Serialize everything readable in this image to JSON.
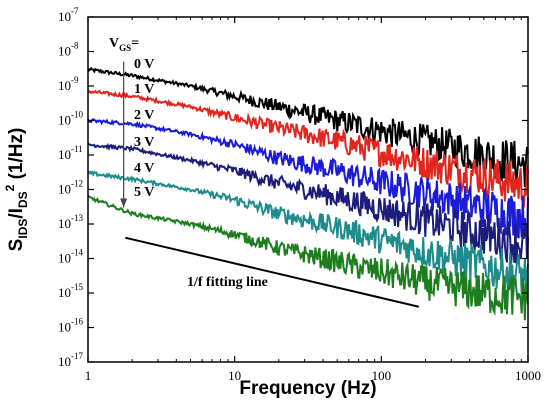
{
  "chart_data": {
    "type": "line",
    "xlabel": "Frequency (Hz)",
    "ylabel": "S_IDS / I_DS^2 (1/Hz)",
    "xscale": "log",
    "yscale": "log",
    "xlim": [
      1,
      1000
    ],
    "ylim": [
      1e-17,
      1e-07
    ],
    "x_ticks": [
      "1",
      "10",
      "100",
      "1000"
    ],
    "y_ticks": [
      "10^-17",
      "10^-16",
      "10^-15",
      "10^-14",
      "10^-13",
      "10^-12",
      "10^-11",
      "10^-10",
      "10^-9",
      "10^-8",
      "10^-7"
    ],
    "legend_title": "V_GS =",
    "series": [
      {
        "name": "0 V",
        "color": "#000000",
        "x": [
          1,
          2,
          5,
          10,
          20,
          50,
          100,
          200,
          500,
          1000
        ],
        "y": [
          3e-09,
          2e-09,
          1e-09,
          5e-10,
          2.5e-10,
          1e-10,
          5e-11,
          2.5e-11,
          1e-11,
          5e-12
        ]
      },
      {
        "name": "1 V",
        "color": "#e0261e",
        "x": [
          1,
          2,
          5,
          10,
          20,
          50,
          100,
          200,
          500,
          1000
        ],
        "y": [
          7e-10,
          5e-10,
          2.5e-10,
          1.2e-10,
          6e-11,
          2.5e-11,
          1.2e-11,
          6e-12,
          2.5e-12,
          1.2e-12
        ]
      },
      {
        "name": "2 V",
        "color": "#1c1cd8",
        "x": [
          1,
          2,
          5,
          10,
          20,
          50,
          100,
          200,
          500,
          1000
        ],
        "y": [
          1e-10,
          8e-11,
          4e-11,
          2e-11,
          8e-12,
          3.5e-12,
          1.6e-12,
          8e-13,
          3e-13,
          1.5e-13
        ]
      },
      {
        "name": "3 V",
        "color": "#1c1c7a",
        "x": [
          1,
          2,
          5,
          10,
          20,
          50,
          100,
          200,
          500,
          1000
        ],
        "y": [
          2e-11,
          1.5e-11,
          7e-12,
          3.5e-12,
          1.5e-12,
          6e-13,
          2.8e-13,
          1.3e-13,
          5e-14,
          2.5e-14
        ]
      },
      {
        "name": "4 V",
        "color": "#1e8c8c",
        "x": [
          1,
          2,
          5,
          10,
          20,
          50,
          100,
          200,
          500,
          1000
        ],
        "y": [
          3e-12,
          2e-12,
          1e-12,
          5e-13,
          2e-13,
          8e-14,
          3.5e-14,
          1.6e-14,
          6e-15,
          3e-15
        ]
      },
      {
        "name": "5 V",
        "color": "#1e7d1e",
        "x": [
          1,
          2,
          5,
          10,
          20,
          50,
          100,
          200,
          500,
          1000
        ],
        "y": [
          6e-13,
          2e-13,
          1e-13,
          5e-14,
          2e-14,
          8e-15,
          4e-15,
          2e-15,
          1e-15,
          7e-16
        ]
      }
    ],
    "fit_line": {
      "label": "1/f fitting line",
      "x": [
        1.8,
        180
      ],
      "y": [
        4e-14,
        4e-16
      ]
    },
    "arrow": {
      "x": 1.75,
      "y_from": 5e-09,
      "y_to": 3e-13
    }
  }
}
